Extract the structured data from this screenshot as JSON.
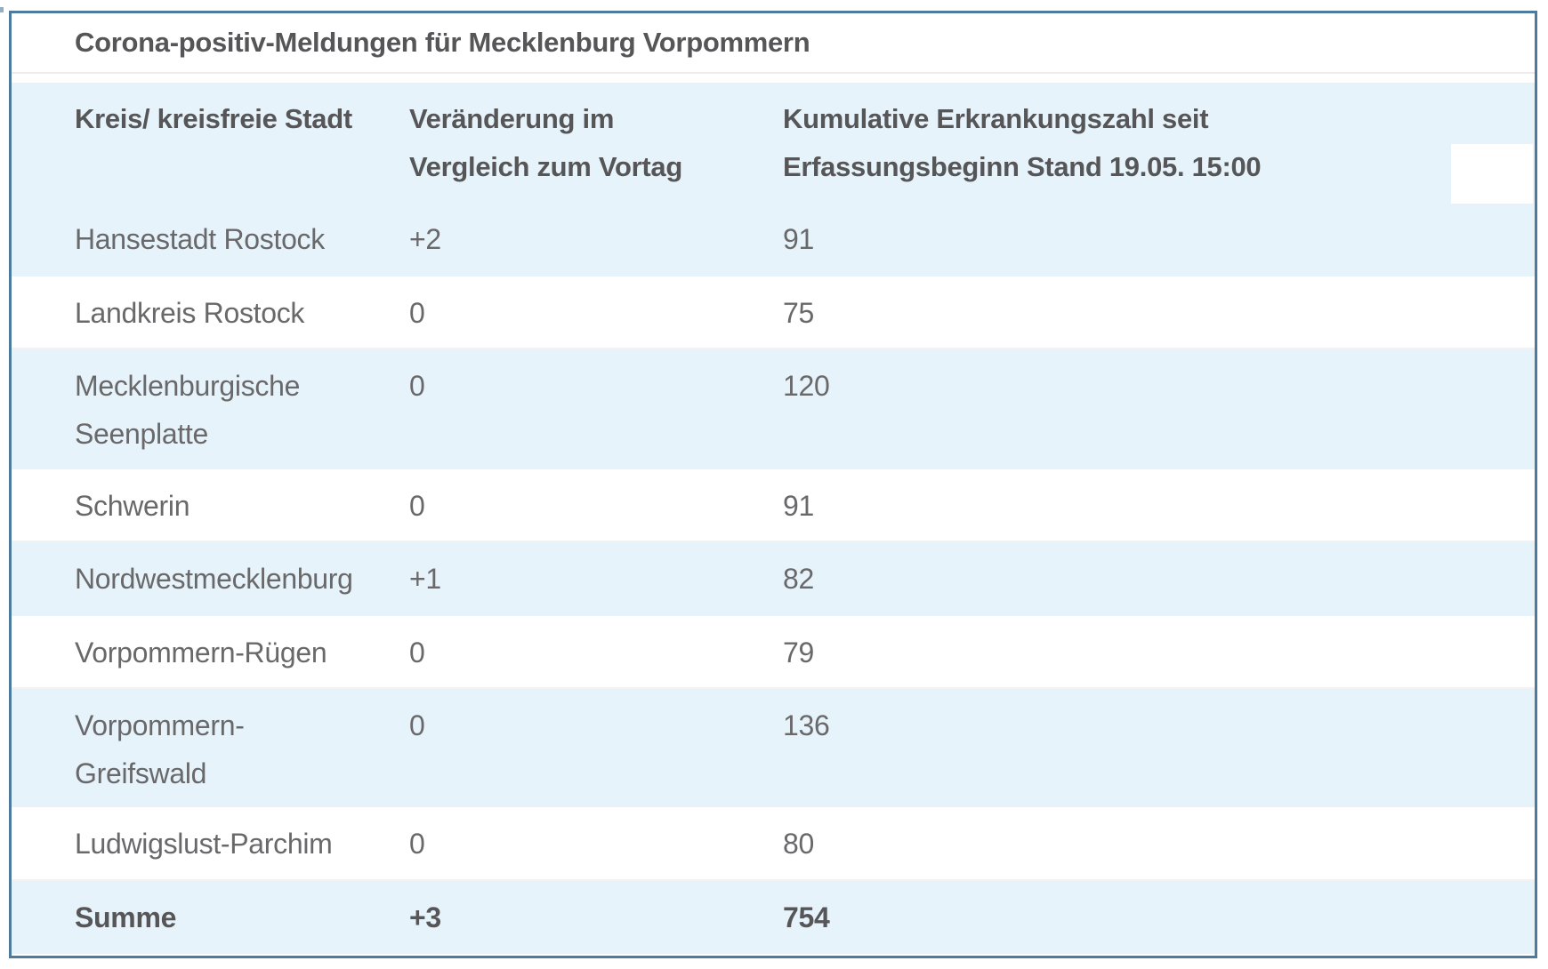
{
  "colors": {
    "stripe": "#e7f3fa",
    "border": "#4e7b9d",
    "text": "#69696b",
    "heading": "#565658",
    "divider": "#ededed"
  },
  "table": {
    "title": "Corona-positiv-Meldungen für Mecklenburg Vorpommern",
    "header": {
      "kreis": "Kreis/ kreisfreie Stadt",
      "veraenderung": "Veränderung im\nVergleich zum Vortag",
      "kumulativ": "Kumulative Erkrankungszahl seit\nErfassungsbeginn Stand 19.05. 15:00"
    },
    "rows": [
      {
        "name": "Hansestadt Rostock",
        "change": "+2",
        "cumulative": "91"
      },
      {
        "name": "Landkreis Rostock",
        "change": "0",
        "cumulative": "75"
      },
      {
        "name": "Mecklenburgische\nSeenplatte",
        "change": "0",
        "cumulative": "120"
      },
      {
        "name": "Schwerin",
        "change": "0",
        "cumulative": "91"
      },
      {
        "name": "Nordwestmecklenburg",
        "change": "+1",
        "cumulative": "82"
      },
      {
        "name": "Vorpommern-Rügen",
        "change": "0",
        "cumulative": "79"
      },
      {
        "name": "Vorpommern-\nGreifswald",
        "change": "0",
        "cumulative": "136"
      },
      {
        "name": "Ludwigslust-Parchim",
        "change": "0",
        "cumulative": "80"
      }
    ],
    "summary": {
      "name": "Summe",
      "change": "+3",
      "cumulative": "754"
    }
  }
}
